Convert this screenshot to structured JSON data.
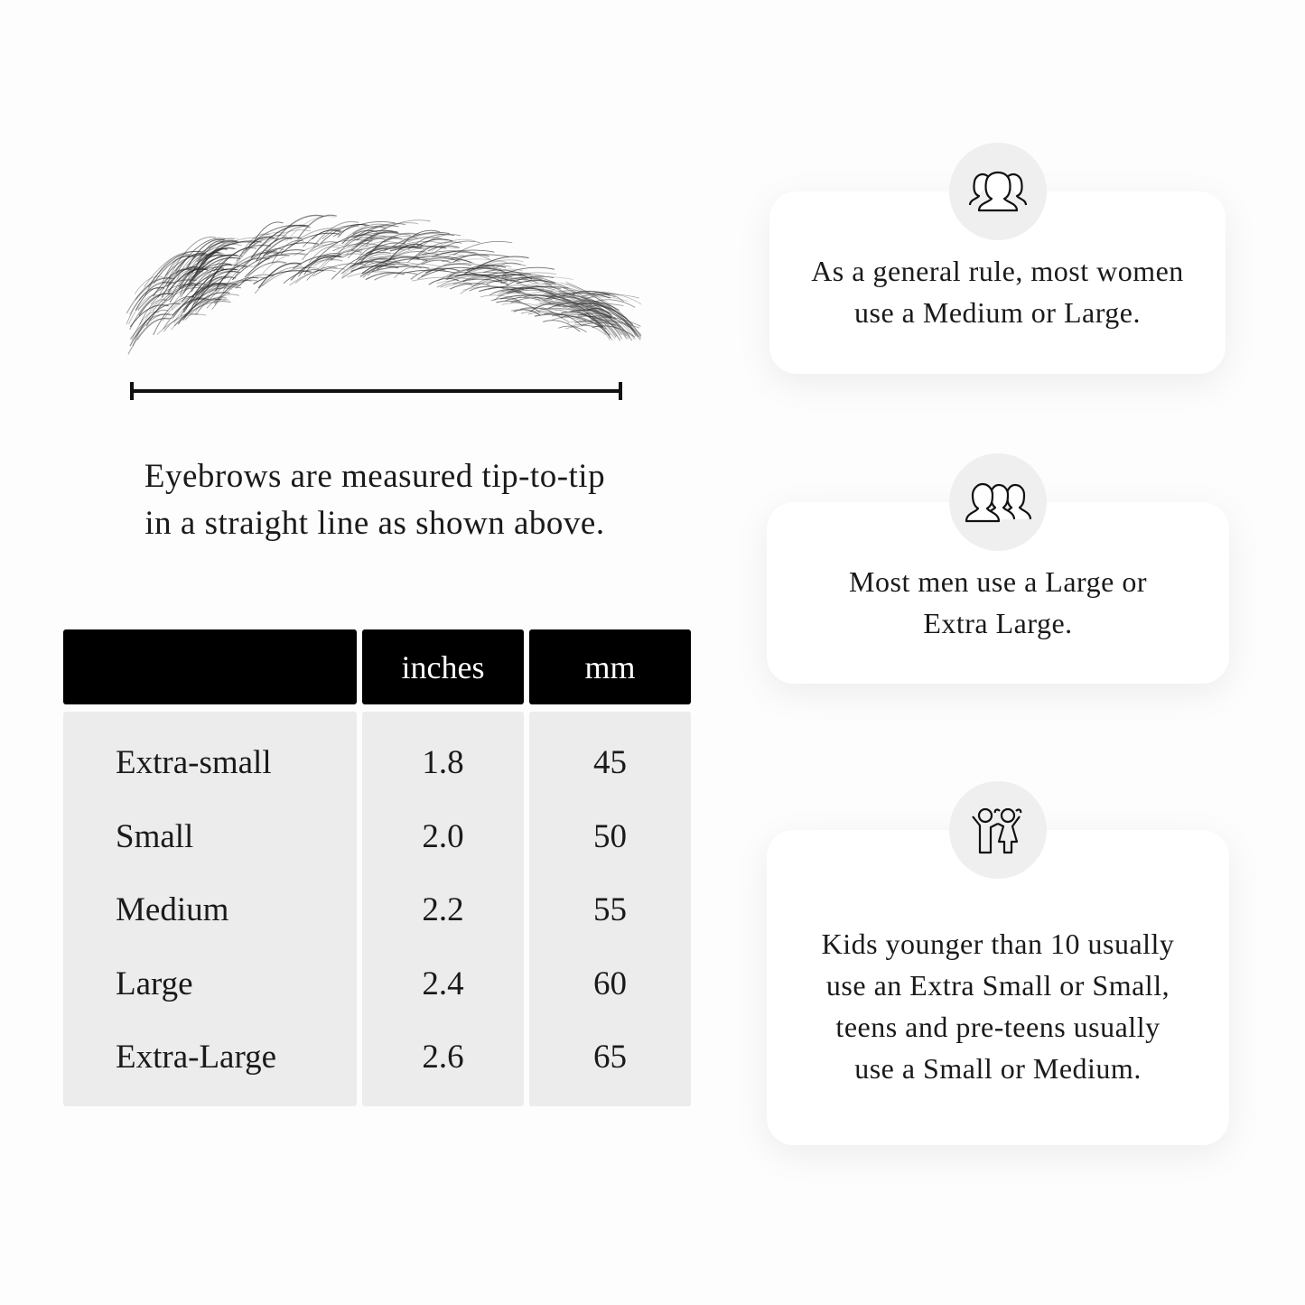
{
  "measure": {
    "caption_line1": "Eyebrows are measured tip-to-tip",
    "caption_line2": "in a straight line as shown above."
  },
  "table": {
    "headers": [
      "",
      "inches",
      "mm"
    ],
    "rows": [
      {
        "size": "Extra-small",
        "inches": "1.8",
        "mm": "45"
      },
      {
        "size": "Small",
        "inches": "2.0",
        "mm": "50"
      },
      {
        "size": "Medium",
        "inches": "2.2",
        "mm": "55"
      },
      {
        "size": "Large",
        "inches": "2.4",
        "mm": "60"
      },
      {
        "size": "Extra-Large",
        "inches": "2.6",
        "mm": "65"
      }
    ]
  },
  "cards": [
    {
      "icon": "women-group-icon",
      "line1": "As a general rule, most women",
      "line2": "use a Medium or Large."
    },
    {
      "icon": "men-group-icon",
      "line1": "Most men use a Large or",
      "line2": "Extra Large."
    },
    {
      "icon": "kids-icon",
      "text": "Kids younger than 10 usually use an Extra Small or Small, teens and pre-teens usually use a Small or Medium."
    }
  ]
}
